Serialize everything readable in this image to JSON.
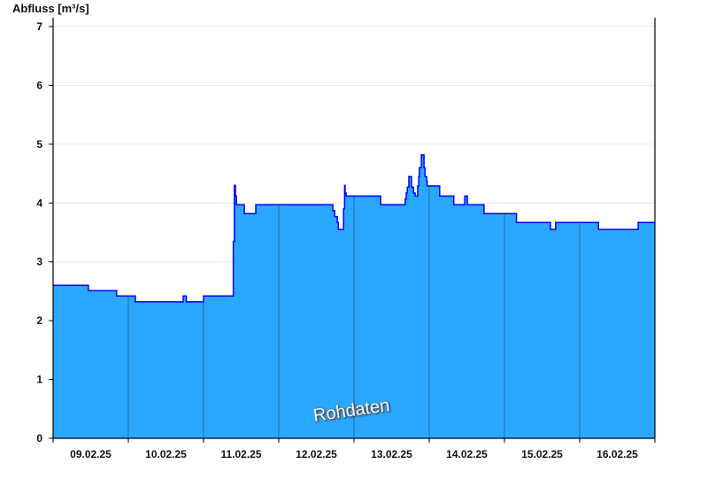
{
  "chart_data": {
    "type": "area",
    "step": "after",
    "ylabel": "Abfluss [m³/s]",
    "xlabel": "",
    "ylim": [
      0,
      7
    ],
    "yticks": [
      0,
      1,
      2,
      3,
      4,
      5,
      6,
      7
    ],
    "xlim": [
      "2025-02-09T00:00",
      "2025-02-17T00:00"
    ],
    "xtick_labels": [
      "09.02.25",
      "10.02.25",
      "11.02.25",
      "12.02.25",
      "13.02.25",
      "14.02.25",
      "15.02.25",
      "16.02.25"
    ],
    "grid": "horizontal",
    "annotation": "Rohdaten",
    "colors": {
      "fill": "#2aa8ff",
      "line": "#0000ff",
      "day_separator": "#1f6f9f",
      "grid": "#e6e6e6"
    },
    "points": [
      [
        "2025-02-09T00:00",
        2.6
      ],
      [
        "2025-02-09T11:15",
        2.51
      ],
      [
        "2025-02-09T20:15",
        2.42
      ],
      [
        "2025-02-10T02:15",
        2.32
      ],
      [
        "2025-02-10T17:30",
        2.42
      ],
      [
        "2025-02-10T18:30",
        2.32
      ],
      [
        "2025-02-11T00:00",
        2.42
      ],
      [
        "2025-02-11T09:30",
        3.35
      ],
      [
        "2025-02-11T09:50",
        4.3
      ],
      [
        "2025-02-11T10:10",
        4.12
      ],
      [
        "2025-02-11T10:30",
        3.97
      ],
      [
        "2025-02-11T13:00",
        3.82
      ],
      [
        "2025-02-11T16:40",
        3.97
      ],
      [
        "2025-02-12T17:15",
        3.87
      ],
      [
        "2025-02-12T17:50",
        3.77
      ],
      [
        "2025-02-12T18:40",
        3.67
      ],
      [
        "2025-02-12T19:00",
        3.55
      ],
      [
        "2025-02-12T20:40",
        3.9
      ],
      [
        "2025-02-12T21:00",
        4.3
      ],
      [
        "2025-02-12T21:10",
        4.17
      ],
      [
        "2025-02-12T21:30",
        4.12
      ],
      [
        "2025-02-13T08:30",
        3.97
      ],
      [
        "2025-02-13T16:20",
        4.07
      ],
      [
        "2025-02-13T16:40",
        4.17
      ],
      [
        "2025-02-13T17:00",
        4.27
      ],
      [
        "2025-02-13T17:30",
        4.45
      ],
      [
        "2025-02-13T18:20",
        4.27
      ],
      [
        "2025-02-13T19:00",
        4.17
      ],
      [
        "2025-02-13T19:30",
        4.12
      ],
      [
        "2025-02-13T20:20",
        4.29
      ],
      [
        "2025-02-13T20:40",
        4.45
      ],
      [
        "2025-02-13T20:50",
        4.6
      ],
      [
        "2025-02-13T21:30",
        4.82
      ],
      [
        "2025-02-13T22:20",
        4.6
      ],
      [
        "2025-02-13T22:40",
        4.45
      ],
      [
        "2025-02-13T23:10",
        4.37
      ],
      [
        "2025-02-13T23:20",
        4.29
      ],
      [
        "2025-02-14T03:20",
        4.12
      ],
      [
        "2025-02-14T07:50",
        3.97
      ],
      [
        "2025-02-14T11:20",
        4.12
      ],
      [
        "2025-02-14T12:10",
        3.97
      ],
      [
        "2025-02-14T17:30",
        3.82
      ],
      [
        "2025-02-15T03:50",
        3.67
      ],
      [
        "2025-02-15T14:40",
        3.55
      ],
      [
        "2025-02-15T16:20",
        3.67
      ],
      [
        "2025-02-16T06:00",
        3.55
      ],
      [
        "2025-02-16T18:40",
        3.67
      ],
      [
        "2025-02-17T00:00",
        3.67
      ]
    ]
  }
}
